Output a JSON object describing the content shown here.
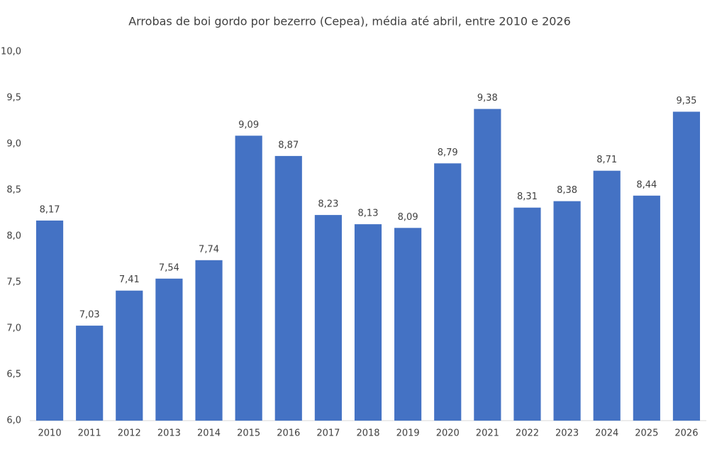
{
  "chart_data": {
    "type": "bar",
    "title": "Arrobas de boi gordo por bezerro (Cepea), média até abril, entre 2010 e 2026",
    "categories": [
      "2010",
      "2011",
      "2012",
      "2013",
      "2014",
      "2015",
      "2016",
      "2017",
      "2018",
      "2019",
      "2020",
      "2021",
      "2022",
      "2023",
      "2024",
      "2025",
      "2026"
    ],
    "values": [
      8.17,
      7.03,
      7.41,
      7.54,
      7.74,
      9.09,
      8.87,
      8.23,
      8.13,
      8.09,
      8.79,
      9.38,
      8.31,
      8.38,
      8.71,
      8.44,
      9.35
    ],
    "value_labels": [
      "8,17",
      "7,03",
      "7,41",
      "7,54",
      "7,74",
      "9,09",
      "8,87",
      "8,23",
      "8,13",
      "8,09",
      "8,79",
      "9,38",
      "8,31",
      "8,38",
      "8,71",
      "8,44",
      "9,35"
    ],
    "color": "#4472c4",
    "ylim": [
      6,
      10
    ],
    "yticks": [
      {
        "value": 6,
        "label": "6,0"
      },
      {
        "value": 6.5,
        "label": "6,5"
      },
      {
        "value": 7,
        "label": "7,0"
      },
      {
        "value": 7.5,
        "label": "7,5"
      },
      {
        "value": 8,
        "label": "8,0"
      },
      {
        "value": 8.5,
        "label": "8,5"
      },
      {
        "value": 9,
        "label": "9,0"
      },
      {
        "value": 9.5,
        "label": "9,5"
      },
      {
        "value": 10,
        "label": "10,0"
      }
    ],
    "grid": false
  }
}
